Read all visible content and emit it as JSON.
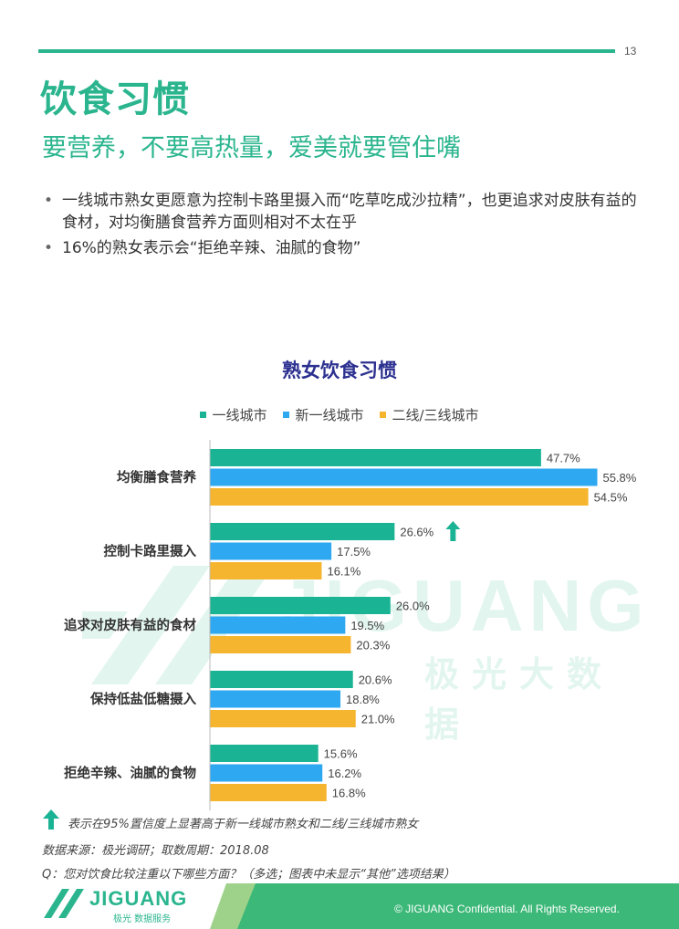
{
  "page_number": "13",
  "title": "饮食习惯",
  "subtitle": "要营养，不要高热量，爱美就要管住嘴",
  "bullets": [
    "一线城市熟女更愿意为控制卡路里摄入而“吃草吃成沙拉精”，也更追求对皮肤有益的食材，对均衡膳食营养方面则相对不太在乎",
    "16%的熟女表示会“拒绝辛辣、油腻的食物”"
  ],
  "watermark": {
    "latin": "JIGUANG",
    "cn": "极光大数据"
  },
  "colors": {
    "accent": "#2bb58e",
    "tier1": "#1ab394",
    "newtier1": "#2ea8f0",
    "tier23": "#f6b52f",
    "title_navy": "#2d3190"
  },
  "chart_data": {
    "type": "bar",
    "orientation": "horizontal",
    "title": "熟女饮食习惯",
    "legend_position": "top",
    "categories": [
      "均衡膳食营养",
      "控制卡路里摄入",
      "追求对皮肤有益的食材",
      "保持低盐低糖摄入",
      "拒绝辛辣、油腻的食物"
    ],
    "series": [
      {
        "name": "一线城市",
        "color": "#1ab394",
        "values": [
          47.7,
          26.6,
          26.0,
          20.6,
          15.6
        ],
        "labels": [
          "47.7%",
          "26.6%",
          "26.0%",
          "20.6%",
          "15.6%"
        ]
      },
      {
        "name": "新一线城市",
        "color": "#2ea8f0",
        "values": [
          55.8,
          17.5,
          19.5,
          18.8,
          16.2
        ],
        "labels": [
          "55.8%",
          "17.5%",
          "19.5%",
          "18.8%",
          "16.2%"
        ]
      },
      {
        "name": "二线/三线城市",
        "color": "#f6b52f",
        "values": [
          54.5,
          16.1,
          20.3,
          21.0,
          16.8
        ],
        "labels": [
          "54.5%",
          "16.1%",
          "20.3%",
          "21.0%",
          "16.8%"
        ]
      }
    ],
    "xlim": [
      0,
      56
    ],
    "significance_marker": {
      "category_index": 1,
      "icon": "up-arrow-icon"
    },
    "grid": false
  },
  "footnotes": {
    "significance": "表示在95%置信度上显著高于新一线城市熟女和二线/三线城市熟女",
    "source": "数据来源：极光调研；取数周期：2018.08",
    "question": "Q：您对饮食比较注重以下哪些方面？（多选；图表中未显示“其他”选项结果）"
  },
  "footer": {
    "logo_name": "JIGUANG",
    "logo_sub": "极光 数据服务",
    "copyright": "© JIGUANG Confidential. All Rights Reserved."
  }
}
